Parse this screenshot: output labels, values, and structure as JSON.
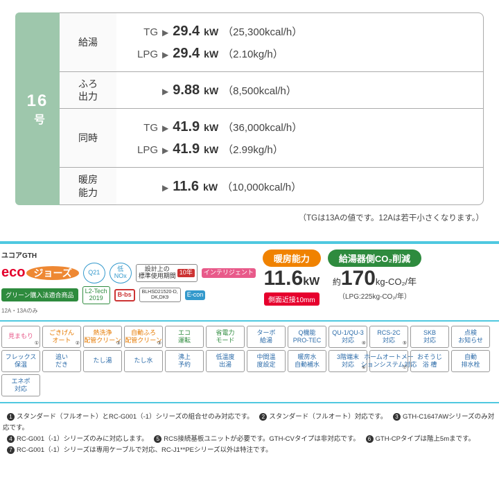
{
  "model": {
    "number": "16",
    "unit": "号"
  },
  "rows": [
    {
      "label": "給湯",
      "lines": [
        {
          "gas": "TG",
          "kw": "29.4",
          "paren": "（25,300kcal/h）"
        },
        {
          "gas": "LPG",
          "kw": "29.4",
          "paren": "（2.10kg/h）"
        }
      ]
    },
    {
      "label": "ふろ\n出力",
      "lines": [
        {
          "gas": "",
          "kw": "9.88",
          "paren": "（8,500kcal/h）"
        }
      ]
    },
    {
      "label": "同時",
      "lines": [
        {
          "gas": "TG",
          "kw": "41.9",
          "paren": "（36,000kcal/h）"
        },
        {
          "gas": "LPG",
          "kw": "41.9",
          "paren": "（2.99kg/h）"
        }
      ]
    },
    {
      "label": "暖房\n能力",
      "lines": [
        {
          "gas": "",
          "kw": "11.6",
          "paren": "（10,000kcal/h）"
        }
      ]
    }
  ],
  "note": "（TGは13Aの値です。12Aは若干小さくなります。）",
  "logos": {
    "brand": "ユコアGTH",
    "eco1": "eco",
    "eco2": "ジョーズ",
    "green": "グリーン購入法適合商品",
    "q21": "Q21",
    "nox": "低NOx",
    "yr": "設計上の\n標準使用期間",
    "yr10": "10年",
    "bbs": "B-bs",
    "l2": "L2-Tech\n2019",
    "bl": "BLHSD21520-D,\nDK,DK9",
    "int": "インテリジェント",
    "econ": "E-con",
    "sm": "12A・13Aのみ"
  },
  "stats": {
    "h_label": "暖房能力",
    "h_val": "11.6",
    "h_unit": "kW",
    "h_color": "#f08200",
    "h_side": "側面近接10mm",
    "c_label": "給湯器側CO₂削減",
    "c_pre": "約",
    "c_val": "170",
    "c_unit": "kg-CO₂/年",
    "c_color": "#2e8b3e",
    "c_sub": "（LPG:225kg-CO₂/年）"
  },
  "feat": [
    {
      "t": "見まもり",
      "c": "pink",
      "n": "①"
    },
    {
      "t": "ごきげん\nオート",
      "c": "or",
      "n": "②"
    },
    {
      "t": "熱洗浄\n配管クリーン",
      "c": "or",
      "n": "③"
    },
    {
      "t": "自動ふろ\n配管クリーン",
      "c": "or",
      "n": "③"
    },
    {
      "t": "エコ\n運転",
      "c": "gr"
    },
    {
      "t": "省電力\nモード",
      "c": "gr"
    },
    {
      "t": "ターボ\n給湯",
      "c": "bl"
    },
    {
      "t": "Q機能\nPRO-TEC",
      "c": "bl"
    },
    {
      "t": "QU-1/QU-3\n対応",
      "c": "bl",
      "n": "④"
    },
    {
      "t": "RCS-2C\n対応",
      "c": "bl",
      "n": "⑤"
    },
    {
      "t": "SKB\n対応",
      "c": "bl"
    },
    {
      "t": "点検\nお知らせ",
      "c": "bl"
    },
    {
      "t": "フレックス\n保温",
      "c": "bl"
    },
    {
      "t": "追い\nだき",
      "c": "bl"
    },
    {
      "t": "たし湯",
      "c": "bl"
    },
    {
      "t": "たし水",
      "c": "bl"
    },
    {
      "t": "沸上\n予約",
      "c": "bl"
    },
    {
      "t": "低温度\n出湯",
      "c": "bl"
    },
    {
      "t": "中間温\n度設定",
      "c": "bl"
    },
    {
      "t": "暖房水\n自動補水",
      "c": "bl"
    },
    {
      "t": "3階端末\n対応",
      "c": "bl",
      "n": "⑥"
    },
    {
      "t": "ホームオートメー\nションシステム対応",
      "c": "bl",
      "n": "⑦"
    },
    {
      "t": "おそうじ\n浴 槽",
      "c": "bl"
    },
    {
      "t": "自動\n排水栓",
      "c": "bl"
    },
    {
      "t": "エネポ\n対応",
      "c": "bl"
    }
  ],
  "fn": [
    "スタンダード（フルオート）とRC-G001（-1）シリーズの組合せのみ対応です。",
    "スタンダード（フルオート）対応です。",
    "GTH-C1647AWシリーズのみ対応です。",
    "RC-G001（-1）シリーズのみに対応します。",
    "RCS接続基板ユニットが必要です。GTH-CVタイプは非対応です。",
    "GTH-CPタイプは階上5mまです。",
    "RC-G001（-1）シリーズは専用ケーブルで対応、RC-J1**PEシリーズ以外は特注です。"
  ]
}
